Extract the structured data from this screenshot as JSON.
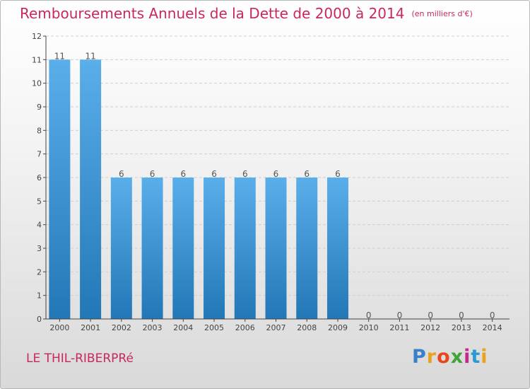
{
  "title": "Remboursements Annuels de la Dette de 2000 à 2014",
  "unit": "(en milliers d'€)",
  "commune": "LE THIL-RIBERPRé",
  "logo": {
    "text": "Proxiti",
    "letter_colors": [
      "#3b7fc9",
      "#e8a21c",
      "#e8471e",
      "#3fa535",
      "#c42a8d",
      "#2a9ad4",
      "#e8a21c"
    ]
  },
  "chart_data": {
    "type": "bar",
    "title": "Remboursements Annuels de la Dette de 2000 à 2014",
    "subtitle": "(en milliers d'€)",
    "xlabel": "",
    "ylabel": "",
    "categories": [
      "2000",
      "2001",
      "2002",
      "2003",
      "2004",
      "2005",
      "2006",
      "2007",
      "2008",
      "2009",
      "2010",
      "2011",
      "2012",
      "2013",
      "2014"
    ],
    "values": [
      11,
      11,
      6,
      6,
      6,
      6,
      6,
      6,
      6,
      6,
      0,
      0,
      0,
      0,
      0
    ],
    "data_labels": [
      "11",
      "11",
      "6",
      "6",
      "6",
      "6",
      "6",
      "6",
      "6",
      "6",
      "0",
      "0",
      "0",
      "0",
      "0"
    ],
    "ylim": [
      0,
      12
    ],
    "yticks": [
      0,
      1,
      2,
      3,
      4,
      5,
      6,
      7,
      8,
      9,
      10,
      11,
      12
    ],
    "grid": true,
    "legend": "none",
    "bar_color_top": "#5aaeea",
    "bar_color_bottom": "#2277b6"
  }
}
